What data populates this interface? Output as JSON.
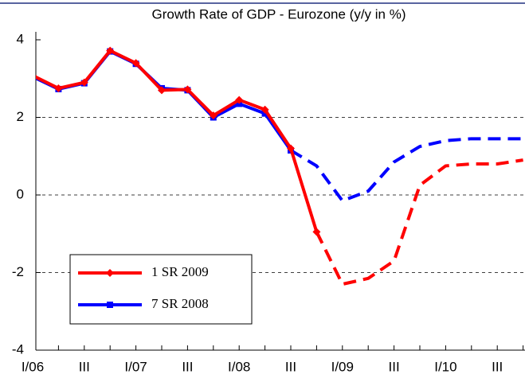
{
  "chart_data": {
    "type": "line",
    "title": "Growth Rate of GDP - Eurozone (y/y  in %)",
    "categories": [
      "I/06",
      null,
      "III",
      null,
      "I/07",
      null,
      "III",
      null,
      "I/08",
      null,
      "III",
      null,
      "I/09",
      null,
      "III",
      null,
      "I/10",
      null,
      "III",
      null
    ],
    "series": [
      {
        "name": "1 SR 2009",
        "color": "#ff0000",
        "marker": "diamond",
        "dashed_from": 11,
        "values": [
          3.08,
          2.75,
          2.9,
          3.72,
          3.4,
          2.7,
          2.72,
          2.05,
          2.45,
          2.2,
          1.2,
          -0.95,
          -2.3,
          -2.15,
          -1.7,
          0.25,
          0.75,
          0.8,
          0.8,
          0.9
        ]
      },
      {
        "name": "7 SR 2008",
        "color": "#0000ff",
        "marker": "square",
        "dashed_from": 10,
        "values": [
          3.05,
          2.73,
          2.88,
          3.7,
          3.38,
          2.75,
          2.7,
          2.0,
          2.35,
          2.1,
          1.15,
          0.75,
          -0.15,
          0.1,
          0.85,
          1.25,
          1.4,
          1.45,
          1.45,
          1.45
        ]
      }
    ],
    "ylim": [
      -4,
      4
    ],
    "yticks": [
      -4,
      -2,
      0,
      2,
      4
    ],
    "grid": true
  }
}
